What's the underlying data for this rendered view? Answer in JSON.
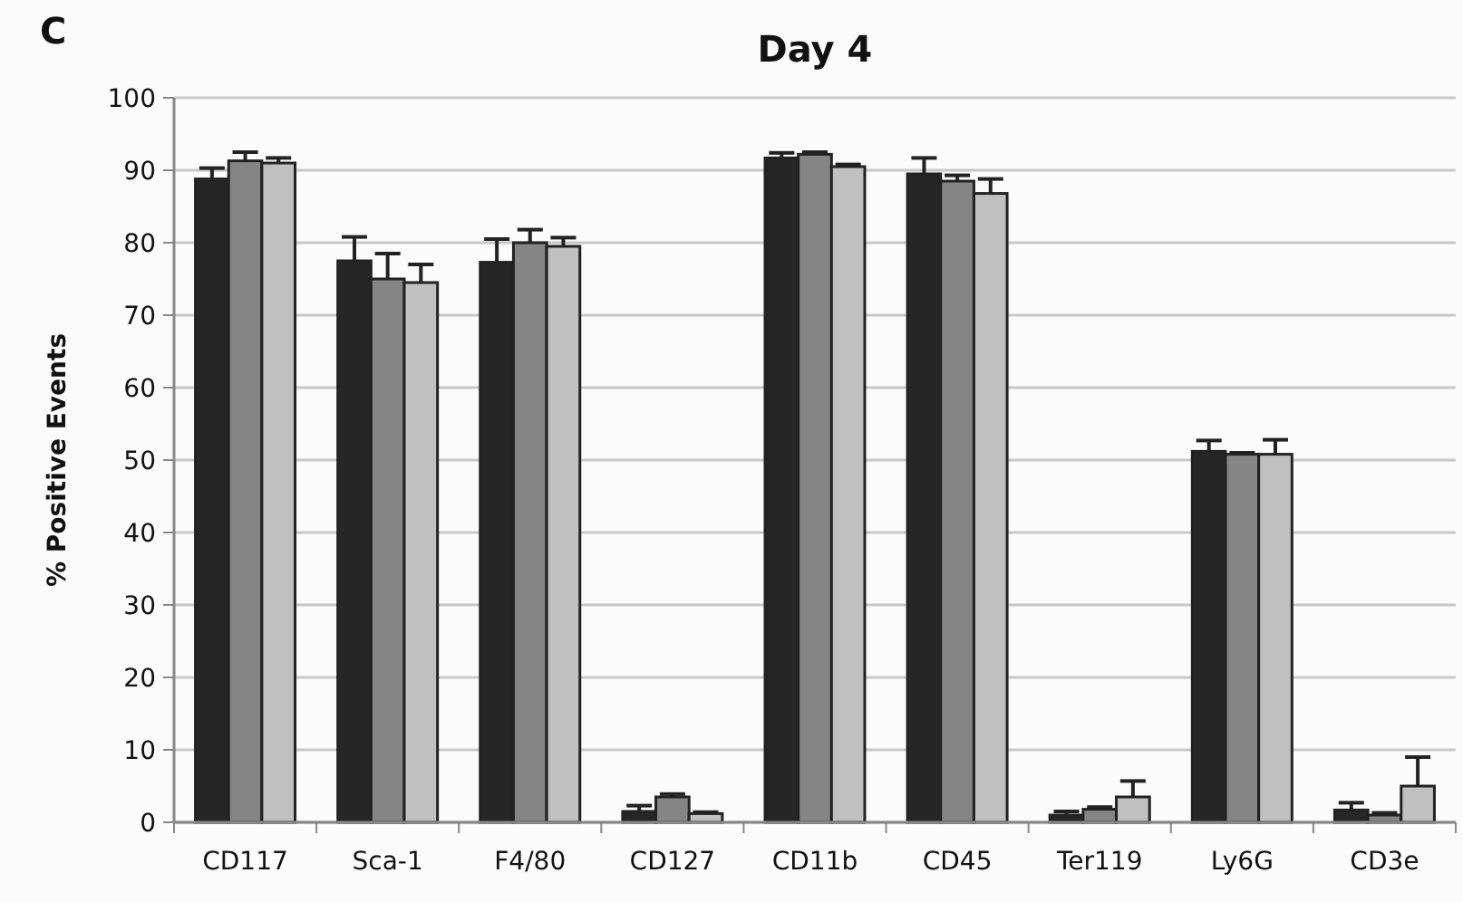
{
  "chart_data": {
    "type": "bar",
    "title": "Day 4",
    "ylabel": "% Positive Events",
    "annotations": [
      "C"
    ],
    "categories": [
      "CD117",
      "Sca-1",
      "F4/80",
      "CD127",
      "CD11b",
      "CD45",
      "Ter119",
      "Ly6G",
      "CD3e"
    ],
    "series": [
      {
        "color": "#262626",
        "values": [
          88.8,
          77.5,
          77.3,
          1.5,
          91.7,
          89.5,
          1,
          51.2,
          1.7
        ],
        "errors": [
          [
            88.8,
            90.3
          ],
          [
            77.5,
            80.8
          ],
          [
            77.3,
            80.5
          ],
          [
            1.5,
            2.3
          ],
          [
            91.7,
            92.4
          ],
          [
            89.5,
            91.7
          ],
          [
            1,
            1.5
          ],
          [
            51.2,
            52.7
          ],
          [
            1.7,
            2.7
          ]
        ]
      },
      {
        "color": "#858585",
        "values": [
          91.3,
          75,
          80,
          3.5,
          92.2,
          88.5,
          1.8,
          50.8,
          1
        ],
        "errors": [
          [
            91.3,
            92.5
          ],
          [
            75,
            78.5
          ],
          [
            80,
            81.8
          ],
          [
            3.5,
            3.9
          ],
          [
            92.2,
            92.5
          ],
          [
            88.5,
            89.3
          ],
          [
            1.8,
            2.1
          ],
          [
            50.8,
            51
          ],
          [
            1,
            1.3
          ]
        ]
      },
      {
        "color": "#c0c0c0",
        "values": [
          91,
          74.5,
          79.5,
          1.2,
          90.5,
          86.8,
          3.5,
          50.8,
          5
        ],
        "errors": [
          [
            91,
            91.7
          ],
          [
            74.5,
            77
          ],
          [
            79.5,
            80.7
          ],
          [
            1.2,
            1.4
          ],
          [
            90.5,
            90.8
          ],
          [
            86.8,
            88.8
          ],
          [
            3.5,
            5.7
          ],
          [
            50.8,
            52.8
          ],
          [
            5,
            9
          ]
        ]
      }
    ],
    "ylim": [
      0,
      100
    ],
    "yticks": [
      0,
      10,
      20,
      30,
      40,
      50,
      60,
      70,
      80,
      90,
      100
    ],
    "grid": "y"
  }
}
